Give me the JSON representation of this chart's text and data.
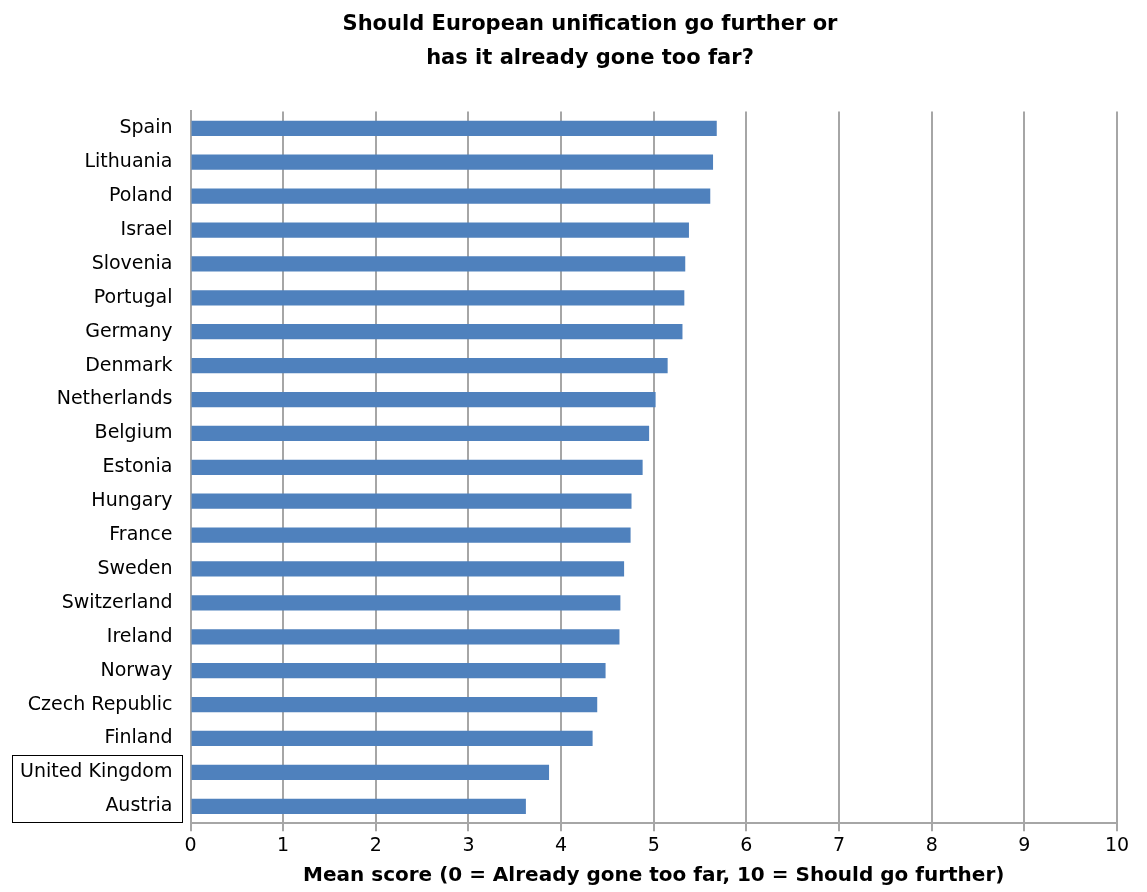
{
  "chart_data": {
    "type": "bar",
    "orientation": "horizontal",
    "title": "Should European unification go further or has it already gone too far?",
    "xlabel": "Mean score (0 = Already gone too far, 10 = Should go further)",
    "categories": [
      "Spain",
      "Lithuania",
      "Poland",
      "Israel",
      "Slovenia",
      "Portugal",
      "Germany",
      "Denmark",
      "Netherlands",
      "Belgium",
      "Estonia",
      "Hungary",
      "France",
      "Sweden",
      "Switzerland",
      "Ireland",
      "Norway",
      "Czech Republic",
      "Finland",
      "United Kingdom",
      "Austria"
    ],
    "values": [
      5.68,
      5.64,
      5.61,
      5.38,
      5.34,
      5.33,
      5.31,
      5.15,
      5.02,
      4.95,
      4.88,
      4.76,
      4.75,
      4.68,
      4.64,
      4.63,
      4.48,
      4.39,
      4.34,
      3.87,
      3.62
    ],
    "color": "#4f81bd",
    "xlim": [
      0,
      10
    ],
    "xticks": [
      0,
      1,
      2,
      3,
      4,
      5,
      6,
      7,
      8,
      9,
      10
    ],
    "grid": "x"
  }
}
